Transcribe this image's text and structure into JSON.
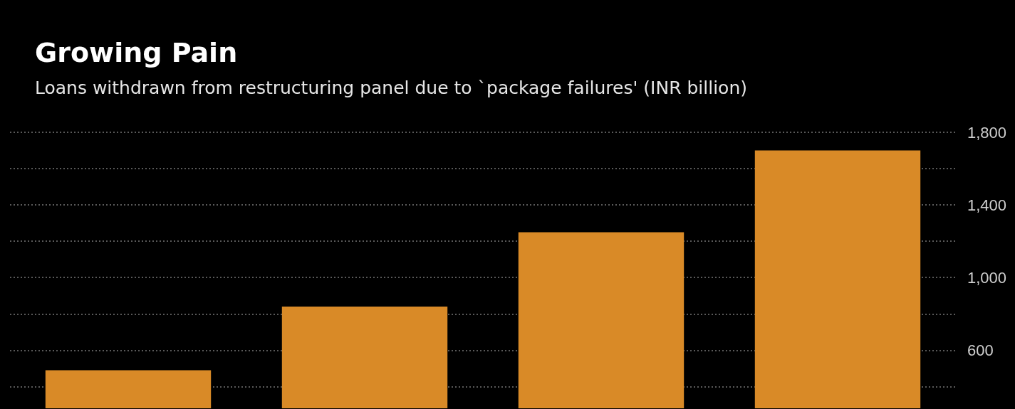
{
  "chart_data": {
    "type": "bar",
    "title": "Growing Pain",
    "subtitle": "Loans withdrawn from restructuring panel due to `package failures' (INR billion)",
    "categories": [
      null,
      null,
      null,
      null
    ],
    "values": [
      490,
      840,
      1250,
      1700
    ],
    "color": "#d98a27",
    "ylim": [
      280,
      1800
    ],
    "yticks": [
      {
        "value": 400,
        "label": null
      },
      600,
      {
        "value": 800,
        "label": null
      },
      {
        "value": 1000,
        "label": "1,000"
      },
      {
        "value": 1200,
        "label": null
      },
      {
        "value": 1400,
        "label": "1,400"
      },
      {
        "value": 1600,
        "label": null
      },
      {
        "value": 1800,
        "label": "1,800"
      }
    ],
    "tick_labels": "y",
    "grid": "y"
  }
}
